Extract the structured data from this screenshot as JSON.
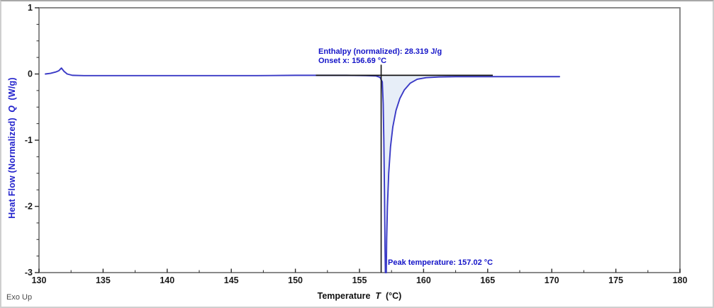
{
  "chart_data": {
    "type": "line",
    "title": "",
    "xlabel": {
      "text": "Temperature",
      "symbol": "T",
      "units": "(°C)"
    },
    "ylabel": {
      "text": "Heat Flow (Normalized)",
      "symbol": "Q",
      "units": "(W/g)"
    },
    "xlim": [
      130,
      180
    ],
    "ylim": [
      -3,
      1
    ],
    "x_ticks": [
      130,
      135,
      140,
      145,
      150,
      155,
      160,
      165,
      170,
      175,
      180
    ],
    "y_ticks": [
      1,
      0,
      -1,
      -2,
      -3
    ],
    "x_minor_step": 2.5,
    "y_minor_step": 0.25,
    "grid": false,
    "legend": null,
    "exo_up": "Exo Up",
    "annotations": {
      "enthalpy": "Enthalpy (normalized): 28.319 J/g",
      "onset": "Onset x: 156.69 °C",
      "peak": "Peak temperature: 157.02 °C"
    },
    "key_values": {
      "enthalpy_normalized_J_per_g": 28.319,
      "onset_temperature_C": 156.69,
      "peak_temperature_C": 157.02
    },
    "markers": {
      "integration_baseline": {
        "x1": 151.6,
        "x2": 165.4,
        "y": -0.02
      },
      "onset_drop_line": {
        "x": 156.69,
        "y_top": 0.14,
        "y_bottom": -3
      },
      "fill_region": {
        "x_start": 156.69,
        "x_end": 161.4,
        "baseline_y": -0.02
      }
    },
    "colors": {
      "curve": "#3a3ac6",
      "fill": "#e7eef8",
      "annotation": "#1414c8",
      "y_axis_title": "#2222cc",
      "tick_label": "#1a1a1a",
      "frame": "#7e7e7e",
      "marker_line": "#141414"
    },
    "series": [
      {
        "name": "heat-flow-curve",
        "points": [
          [
            130.5,
            0.0
          ],
          [
            130.9,
            0.01
          ],
          [
            131.3,
            0.03
          ],
          [
            131.55,
            0.05
          ],
          [
            131.75,
            0.09
          ],
          [
            131.95,
            0.04
          ],
          [
            132.2,
            0.0
          ],
          [
            132.6,
            -0.02
          ],
          [
            133.5,
            -0.025
          ],
          [
            135,
            -0.025
          ],
          [
            138,
            -0.025
          ],
          [
            141,
            -0.025
          ],
          [
            144,
            -0.025
          ],
          [
            147,
            -0.025
          ],
          [
            150,
            -0.02
          ],
          [
            152,
            -0.02
          ],
          [
            154,
            -0.02
          ],
          [
            155.5,
            -0.025
          ],
          [
            156.3,
            -0.03
          ],
          [
            156.6,
            -0.05
          ],
          [
            156.78,
            -0.12
          ],
          [
            156.85,
            -0.45
          ],
          [
            156.9,
            -1.0
          ],
          [
            156.95,
            -1.8
          ],
          [
            156.99,
            -2.6
          ],
          [
            157.02,
            -3.0
          ],
          [
            157.09,
            -3.0
          ],
          [
            157.12,
            -2.5
          ],
          [
            157.18,
            -2.0
          ],
          [
            157.28,
            -1.5
          ],
          [
            157.42,
            -1.1
          ],
          [
            157.6,
            -0.8
          ],
          [
            157.85,
            -0.55
          ],
          [
            158.15,
            -0.37
          ],
          [
            158.5,
            -0.24
          ],
          [
            158.95,
            -0.14
          ],
          [
            159.5,
            -0.08
          ],
          [
            160.2,
            -0.055
          ],
          [
            161.2,
            -0.045
          ],
          [
            162.5,
            -0.04
          ],
          [
            164,
            -0.04
          ],
          [
            166,
            -0.04
          ],
          [
            168,
            -0.04
          ],
          [
            170.0,
            -0.04
          ],
          [
            170.6,
            -0.04
          ]
        ]
      }
    ]
  }
}
